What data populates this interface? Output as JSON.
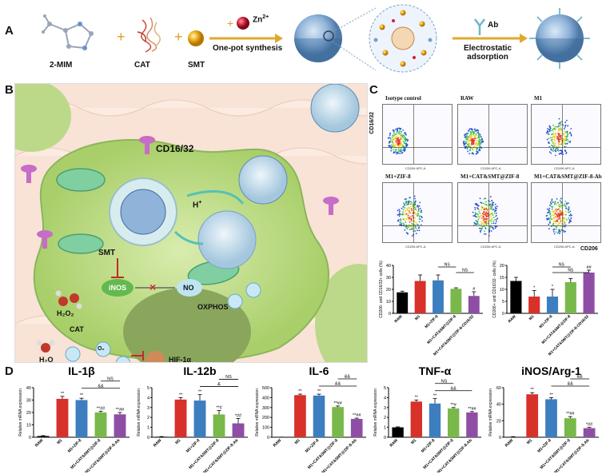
{
  "panels": {
    "a": "A",
    "b": "B",
    "c": "C",
    "d": "D"
  },
  "panelA": {
    "reagents": [
      "2-MIM",
      "CAT",
      "SMT"
    ],
    "zinc": "Zn",
    "zinc_sup": "2+",
    "step1": "One-pot synthesis",
    "ab_label": "Ab",
    "step2": "Electrostatic\nadsorption"
  },
  "panelB": {
    "cd1632": "CD16/32",
    "hplus": "H",
    "hplus_sup": "+",
    "smt": "SMT",
    "inos": "iNOS",
    "no": "NO",
    "h2o2": "H₂O₂",
    "cat": "CAT",
    "h2o": "H₂O",
    "o2": "O₂",
    "oxphos": "OXPHOS",
    "hif": "HIF-1α"
  },
  "panelC": {
    "flow_titles": [
      "Isotype control",
      "RAW",
      "M1",
      "M1+ZIF-8",
      "M1+CAT&SMT@ZIF-8",
      "M1+CAT&SMT@ZIF-8-Ab"
    ],
    "y_axis_label": "CD16/32",
    "x_axis_label": "CD206",
    "quadrant_xlabel": "CD206 APC-A"
  },
  "chart_data": [
    {
      "type": "bar",
      "id": "c-left",
      "categories": [
        "RAW",
        "M1",
        "M1+ZIF-8",
        "M1+CAT&SMT@ZIF-8",
        "M1+CAT&SMT@ZIF-8-CD16/32"
      ],
      "values": [
        17.5,
        27,
        27.5,
        20.5,
        14.5
      ],
      "errors": [
        1,
        5,
        4.5,
        0.8,
        3.5
      ],
      "colors": [
        "#000000",
        "#d7312a",
        "#3d7ec0",
        "#79b84a",
        "#8e4ea6"
      ],
      "ylabel": "CD206- and CD16/32+ cells (%)",
      "ylim": [
        0,
        40
      ],
      "yticks": [
        0,
        10,
        20,
        30,
        40
      ],
      "annotations": [
        {
          "text": "NS",
          "x_from": 2,
          "x_to": 3
        },
        {
          "text": "NS",
          "x_from": 3,
          "x_to": 4
        },
        {
          "text": "#",
          "at": 4
        }
      ]
    },
    {
      "type": "bar",
      "id": "c-right",
      "categories": [
        "RAW",
        "M1",
        "M1+ZIF-8",
        "M1+CAT&SMT@ZIF-8",
        "M1+CAT&SMT@ZIF-8-CD16/32"
      ],
      "values": [
        13.5,
        7,
        7,
        13,
        17
      ],
      "errors": [
        1.5,
        2.5,
        3,
        1.5,
        1
      ],
      "colors": [
        "#000000",
        "#d7312a",
        "#3d7ec0",
        "#79b84a",
        "#8e4ea6"
      ],
      "ylabel": "CD206+ and CD16/32- cells (%)",
      "ylim": [
        0,
        20
      ],
      "yticks": [
        0,
        5,
        10,
        15,
        20
      ],
      "annotations": [
        {
          "text": "*",
          "at": 1
        },
        {
          "text": "*",
          "at": 2
        },
        {
          "text": "NS",
          "x_from": 2,
          "x_to": 3
        },
        {
          "text": "NS",
          "x_from": 2,
          "x_to": 4
        },
        {
          "text": "##",
          "at": 4
        }
      ]
    },
    {
      "type": "bar",
      "id": "d-il1b",
      "title": "IL-1β",
      "categories": [
        "RAW",
        "M1",
        "M1+ZIF-8",
        "M1+CAT&SMT@ZIF-8",
        "M1+CAT&SMT@ZIF-8-Ab"
      ],
      "values": [
        1,
        31,
        30,
        20,
        18.5
      ],
      "errors": [
        0.3,
        2,
        1.5,
        1,
        1.5
      ],
      "colors": [
        "#000000",
        "#d7312a",
        "#3d7ec0",
        "#79b84a",
        "#8e4ea6"
      ],
      "ylabel": "Relative mRNA expression",
      "ylim": [
        0,
        40
      ],
      "yticks": [
        0,
        10,
        20,
        30,
        40
      ],
      "bar_labels": [
        "",
        "**",
        "**",
        "**##",
        "**##"
      ],
      "brackets": [
        {
          "text": "&&",
          "from": 2,
          "to": 4,
          "level": 0
        },
        {
          "text": "NS",
          "from": 3,
          "to": 4,
          "level": 1
        }
      ]
    },
    {
      "type": "bar",
      "id": "d-il12b",
      "title": "IL-12b",
      "categories": [
        "RAW",
        "M1",
        "M1+ZIF-8",
        "M1+CAT&SMT@ZIF-8",
        "M1+CAT&SMT@ZIF-8-Ab"
      ],
      "values": [
        0.05,
        3.8,
        3.7,
        2.3,
        1.4
      ],
      "errors": [
        0.02,
        0.2,
        0.6,
        0.4,
        0.5
      ],
      "colors": [
        "#000000",
        "#d7312a",
        "#3d7ec0",
        "#79b84a",
        "#8e4ea6"
      ],
      "ylabel": "Relative mRNA expression",
      "ylim": [
        0,
        5
      ],
      "yticks": [
        0,
        1,
        2,
        3,
        4,
        5
      ],
      "bar_labels": [
        "",
        "**",
        "**",
        "**#",
        "*##"
      ],
      "brackets": [
        {
          "text": "&",
          "from": 2,
          "to": 4,
          "level": 0
        },
        {
          "text": "NS",
          "from": 3,
          "to": 4,
          "level": 1
        }
      ]
    },
    {
      "type": "bar",
      "id": "d-il6",
      "title": "IL-6",
      "categories": [
        "RAW",
        "M1",
        "M1+ZIF-8",
        "M1+CAT&SMT@ZIF-8",
        "M1+CAT&SMT@ZIF-8-Ab"
      ],
      "values": [
        1,
        425,
        420,
        305,
        185
      ],
      "errors": [
        0.5,
        10,
        15,
        10,
        8
      ],
      "colors": [
        "#000000",
        "#d7312a",
        "#3d7ec0",
        "#79b84a",
        "#8e4ea6"
      ],
      "ylabel": "Relative mRNA expression",
      "ylim": [
        0,
        500
      ],
      "yticks": [
        0,
        100,
        200,
        300,
        400,
        500
      ],
      "bar_labels": [
        "",
        "**",
        "**",
        "**##",
        "**##"
      ],
      "brackets": [
        {
          "text": "&&",
          "from": 2,
          "to": 4,
          "level": 0
        },
        {
          "text": "&&",
          "from": 3,
          "to": 4,
          "level": 1
        }
      ]
    },
    {
      "type": "bar",
      "id": "d-tnfa",
      "title": "TNF-α",
      "categories": [
        "RAW",
        "M1",
        "M1+ZIF-8",
        "M1+CAT&SMT@ZIF-8",
        "M1+CAT&SMT@ZIF-8-Ab"
      ],
      "values": [
        1,
        3.6,
        3.4,
        2.9,
        2.5
      ],
      "errors": [
        0.05,
        0.15,
        0.5,
        0.1,
        0.1
      ],
      "colors": [
        "#000000",
        "#d7312a",
        "#3d7ec0",
        "#79b84a",
        "#8e4ea6"
      ],
      "ylabel": "Relative mRNA expression",
      "ylim": [
        0,
        5
      ],
      "yticks": [
        0,
        1,
        2,
        3,
        4,
        5
      ],
      "bar_labels": [
        "",
        "**",
        "**",
        "**#",
        "**##"
      ],
      "brackets": [
        {
          "text": "&&",
          "from": 2,
          "to": 4,
          "level": 0
        },
        {
          "text": "NS",
          "from": 2,
          "to": 3,
          "level": 1
        }
      ]
    },
    {
      "type": "bar",
      "id": "d-inos",
      "title": "iNOS/Arg-1",
      "categories": [
        "RAW",
        "M1",
        "M1+ZIF-8",
        "M1+CAT&SMT@ZIF-8",
        "M1+CAT&SMT@ZIF-8-Ab"
      ],
      "values": [
        0.5,
        52,
        46,
        23,
        11
      ],
      "errors": [
        0.2,
        2,
        2,
        2,
        1
      ],
      "colors": [
        "#000000",
        "#d7312a",
        "#3d7ec0",
        "#79b84a",
        "#8e4ea6"
      ],
      "ylabel": "Relative mRNA expression",
      "ylim": [
        0,
        60
      ],
      "yticks": [
        0,
        20,
        40,
        60
      ],
      "bar_labels": [
        "",
        "**",
        "**",
        "**##",
        "*##"
      ],
      "brackets": [
        {
          "text": "&&",
          "from": 2,
          "to": 4,
          "level": 0
        },
        {
          "text": "&&",
          "from": 3,
          "to": 4,
          "level": 1
        }
      ]
    }
  ]
}
